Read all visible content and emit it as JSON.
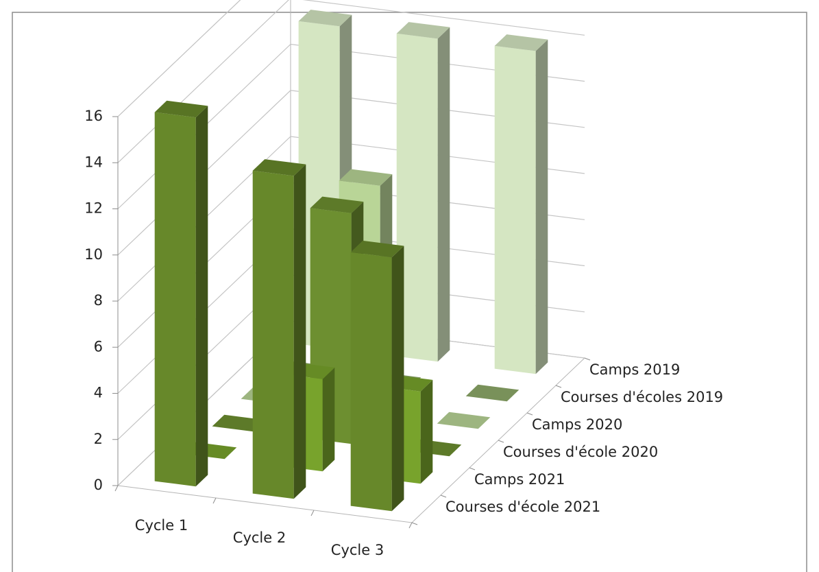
{
  "chart_data": {
    "type": "bar",
    "categories": [
      "Cycle 1",
      "Cycle 2",
      "Cycle 3"
    ],
    "series": [
      {
        "name": "Courses d'école 2021",
        "color": "#67882a",
        "values": [
          16,
          14,
          11
        ]
      },
      {
        "name": "Camps 2021",
        "color": "#78a32c",
        "values": [
          0,
          4,
          4
        ]
      },
      {
        "name": "Courses d'école 2020",
        "color": "#6d8f30",
        "values": [
          0,
          10,
          0
        ]
      },
      {
        "name": "Camps 2020",
        "color": "#b9d597",
        "values": [
          0,
          10,
          0
        ]
      },
      {
        "name": "Courses d'écoles 2019",
        "color": "#8eaa6a",
        "values": [
          0,
          0,
          0
        ]
      },
      {
        "name": "Camps 2019",
        "color": "#d5e6c2",
        "values": [
          14,
          14,
          14
        ]
      }
    ],
    "ylim": [
      0,
      16
    ],
    "yticks": [
      0,
      2,
      4,
      6,
      8,
      10,
      12,
      14,
      16
    ],
    "grid": true
  }
}
